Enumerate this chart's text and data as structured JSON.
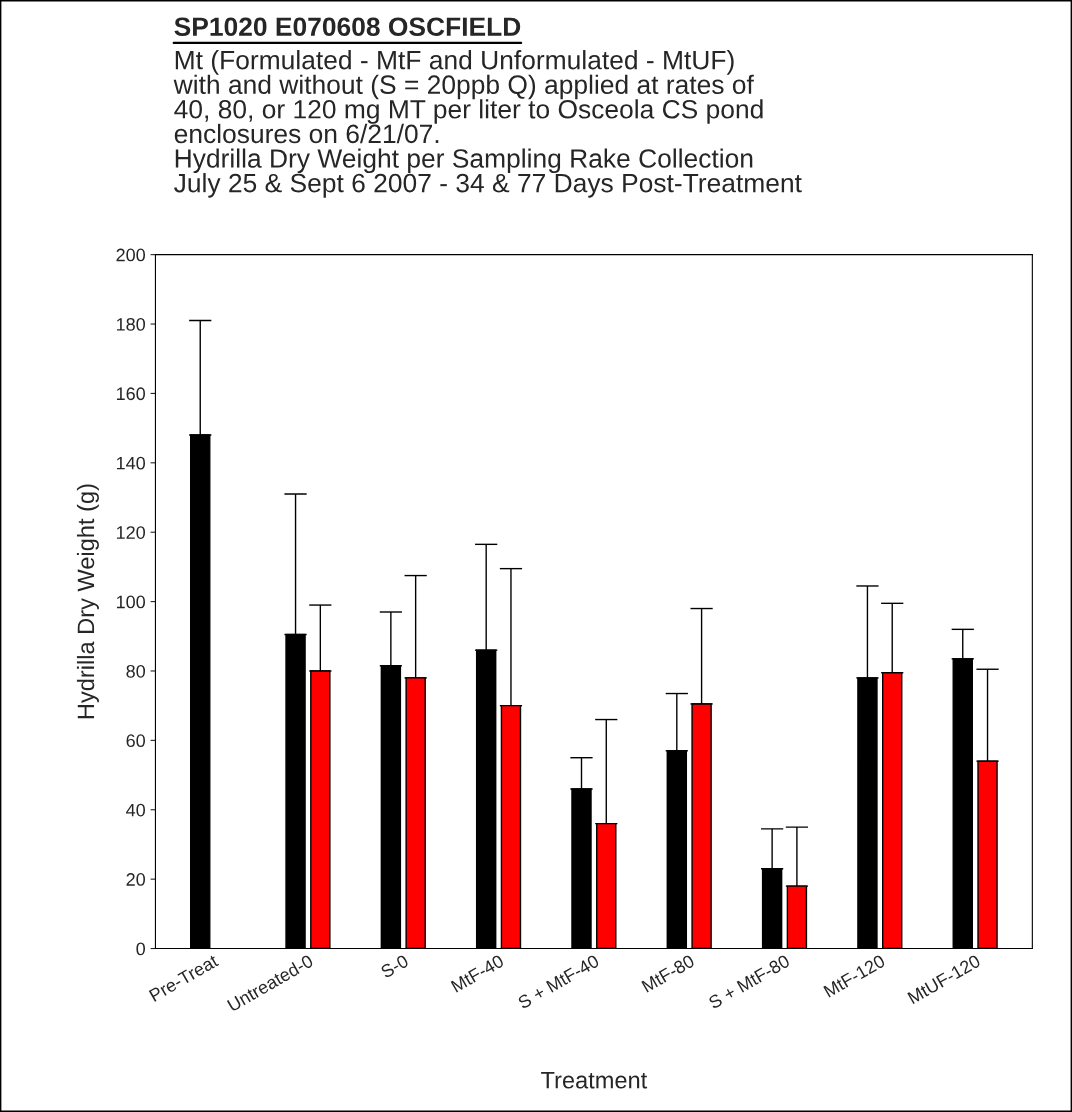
{
  "chart_data": {
    "type": "bar",
    "title": "SP1020 E070608 OSCFIELD",
    "subtitle": "Mt (Formulated - MtF and Unformulated - MtUF)\nwith and without (S = 20ppb Q) applied at rates of\n40, 80, or 120 mg MT per liter to Osceola CS pond\nenclosures on 6/21/07.\nHydrilla Dry Weight per Sampling Rake Collection\nJuly 25 & Sept 6 2007 - 34 & 77 Days Post-Treatment",
    "xlabel": "Treatment",
    "ylabel": "Hydrilla Dry Weight (g)",
    "categories": [
      "Pre-Treat",
      "Untreated-0",
      "S-0",
      "MtF-40",
      "S + MtF-40",
      "MtF-80",
      "S + MtF-80",
      "MtF-120",
      "MtUF-120"
    ],
    "series": [
      {
        "color": "#000000",
        "values": [
          148,
          90.5,
          81.5,
          86,
          46,
          57,
          23,
          78,
          83.5
        ],
        "errors": [
          [
            148,
            181
          ],
          [
            90.5,
            131
          ],
          [
            81.5,
            97
          ],
          [
            86,
            116.5
          ],
          [
            46,
            55
          ],
          [
            57,
            73.5
          ],
          [
            23,
            34.5
          ],
          [
            78,
            104.5
          ],
          [
            83.5,
            92
          ]
        ]
      },
      {
        "color": "#ff0000",
        "values": [
          null,
          80,
          78,
          70,
          36,
          70.5,
          18,
          79.5,
          54
        ],
        "errors": [
          null,
          [
            80,
            99
          ],
          [
            78,
            107.5
          ],
          [
            70,
            109.5
          ],
          [
            36,
            66
          ],
          [
            70.5,
            98
          ],
          [
            18,
            35
          ],
          [
            79.5,
            99.5
          ],
          [
            54,
            80.5
          ]
        ]
      }
    ],
    "ylim": [
      0,
      200
    ],
    "yticks": [
      0,
      20,
      40,
      60,
      80,
      100,
      120,
      140,
      160,
      180,
      200
    ],
    "grid": false,
    "legend": false
  }
}
